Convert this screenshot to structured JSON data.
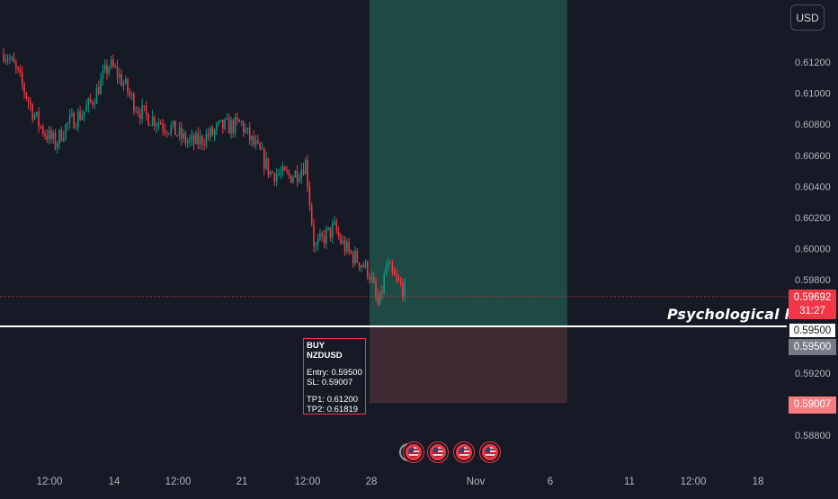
{
  "currency_button": "USD",
  "psychological_label": "Psychological level",
  "last_price": {
    "price": "0.59692",
    "countdown": "31:27"
  },
  "entry_tag_white": "0.59500",
  "entry_tag_grey": "0.59500",
  "sl_tag": "0.59007",
  "trade_note": {
    "title": "BUY NZDUSD",
    "entry": "Entry:  0.59500",
    "sl": "SL:   0.59007",
    "tp1": "TP1: 0.61200",
    "tp2": "TP2: 0.61819"
  },
  "colors": {
    "background": "#161a25",
    "up": "#089981",
    "down": "#f23645",
    "profit_zone": "#1f4a44",
    "loss_zone": "#3f2b33",
    "text": "#b2b5be"
  },
  "icons": [
    "us-flag-event-icon",
    "us-flag-event-icon",
    "us-flag-event-icon",
    "us-flag-event-icon"
  ],
  "chart_data": {
    "type": "candlestick",
    "instrument": "NZDUSD",
    "x_ticks": [
      "12:00",
      "14",
      "12:00",
      "21",
      "12:00",
      "28",
      "Nov",
      "6",
      "11",
      "12:00",
      "18"
    ],
    "y_ticks": [
      "0.61200",
      "0.61000",
      "0.60800",
      "0.60600",
      "0.60400",
      "0.60200",
      "0.60000",
      "0.59800",
      "0.59200",
      "0.58800"
    ],
    "ylim": [
      0.5875,
      0.6145
    ],
    "trend_anchors": [
      {
        "x": "start",
        "y": 0.6125
      },
      {
        "x": "14",
        "y": 0.6065
      },
      {
        "x": "14 12:00",
        "y": 0.6115
      },
      {
        "x": "17",
        "y": 0.6075
      },
      {
        "x": "20",
        "y": 0.607
      },
      {
        "x": "21",
        "y": 0.6085
      },
      {
        "x": "22",
        "y": 0.6045
      },
      {
        "x": "24",
        "y": 0.6055
      },
      {
        "x": "26",
        "y": 0.5995
      },
      {
        "x": "27",
        "y": 0.6015
      },
      {
        "x": "28",
        "y": 0.598
      },
      {
        "x": "28 12:00",
        "y": 0.596
      },
      {
        "x": "29",
        "y": 0.5992
      },
      {
        "x": "30",
        "y": 0.5973
      }
    ],
    "last_price": 0.59692,
    "psychological_level": 0.595,
    "position": {
      "side": "long",
      "entry": 0.595,
      "stop_loss": 0.59007,
      "target_zone_top": 0.6145
    }
  }
}
